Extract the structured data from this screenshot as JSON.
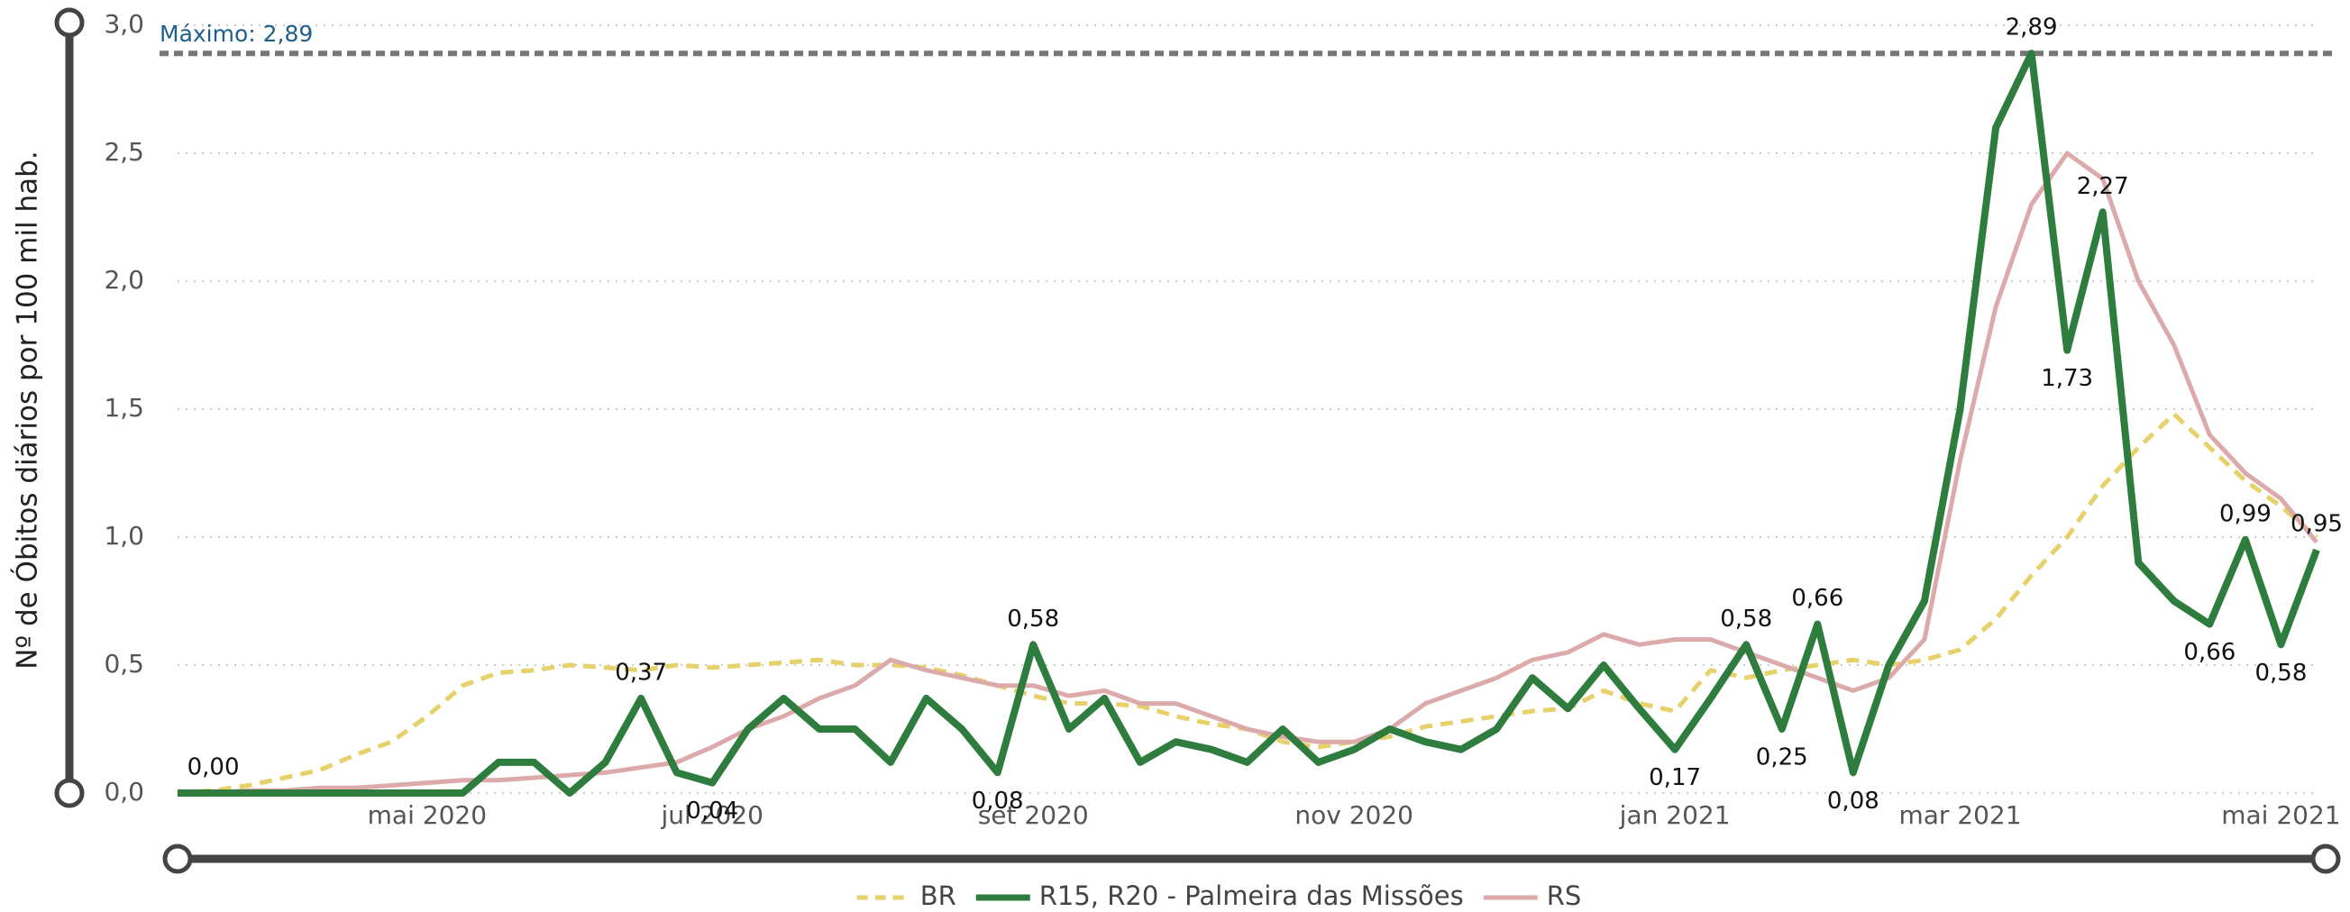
{
  "chart_data": {
    "type": "line",
    "y_label": "Nº de Óbitos diários por 100 mil hab.",
    "categories": [
      null,
      null,
      null,
      null,
      null,
      null,
      null,
      "mai 2020",
      null,
      null,
      null,
      null,
      null,
      null,
      null,
      "jul 2020",
      null,
      null,
      null,
      null,
      null,
      null,
      null,
      null,
      "set 2020",
      null,
      null,
      null,
      null,
      null,
      null,
      null,
      null,
      "nov 2020",
      null,
      null,
      null,
      null,
      null,
      null,
      null,
      null,
      "jan 2021",
      null,
      null,
      null,
      null,
      null,
      null,
      null,
      "mar 2021",
      null,
      null,
      null,
      null,
      null,
      null,
      null,
      null,
      "mai 2021",
      null
    ],
    "series": [
      {
        "name": "BR",
        "color": "#e6d16a",
        "dashed": true,
        "values": [
          0,
          0.01,
          0.03,
          0.06,
          0.09,
          0.15,
          0.2,
          0.3,
          0.42,
          0.47,
          0.48,
          0.5,
          0.49,
          0.48,
          0.5,
          0.49,
          0.5,
          0.51,
          0.52,
          0.5,
          0.5,
          0.49,
          0.46,
          0.42,
          0.38,
          0.35,
          0.35,
          0.34,
          0.3,
          0.27,
          0.25,
          0.2,
          0.18,
          0.2,
          0.22,
          0.26,
          0.28,
          0.3,
          0.32,
          0.33,
          0.4,
          0.35,
          0.32,
          0.48,
          0.45,
          0.48,
          0.5,
          0.52,
          0.5,
          0.52,
          0.56,
          0.68,
          0.85,
          1.0,
          1.2,
          1.35,
          1.48,
          1.35,
          1.22,
          1.12,
          1.0
        ]
      },
      {
        "name": "R15, R20 - Palmeira das Missões",
        "color": "#2e7d3e",
        "values": [
          0,
          0,
          0,
          0,
          0,
          0,
          0,
          0,
          0,
          0.12,
          0.12,
          0,
          0.12,
          0.37,
          0.08,
          0.04,
          0.25,
          0.37,
          0.25,
          0.25,
          0.12,
          0.37,
          0.25,
          0.08,
          0.58,
          0.25,
          0.37,
          0.12,
          0.2,
          0.17,
          0.12,
          0.25,
          0.12,
          0.17,
          0.25,
          0.2,
          0.17,
          0.25,
          0.45,
          0.33,
          0.5,
          0.33,
          0.17,
          0.37,
          0.58,
          0.25,
          0.66,
          0.08,
          0.5,
          0.75,
          1.5,
          2.6,
          2.89,
          1.73,
          2.27,
          0.9,
          0.75,
          0.66,
          0.99,
          0.58,
          0.95
        ],
        "value_labels": [
          null,
          "0,00",
          null,
          null,
          null,
          null,
          null,
          null,
          null,
          null,
          null,
          null,
          null,
          "0,37",
          null,
          "0,04",
          null,
          null,
          null,
          null,
          null,
          null,
          null,
          "0,08",
          "0,58",
          null,
          null,
          null,
          null,
          null,
          null,
          null,
          null,
          null,
          null,
          null,
          null,
          null,
          null,
          null,
          null,
          null,
          "0,17",
          null,
          "0,58",
          "0,25",
          "0,66",
          "0,08",
          null,
          null,
          null,
          null,
          "2,89",
          "1,73",
          "2,27",
          null,
          null,
          "0,66",
          "0,99",
          "0,58",
          "0,95"
        ]
      },
      {
        "name": "RS",
        "color": "#dcaaaa",
        "values": [
          0,
          0,
          0.01,
          0.01,
          0.02,
          0.02,
          0.03,
          0.04,
          0.05,
          0.05,
          0.06,
          0.07,
          0.08,
          0.1,
          0.12,
          0.18,
          0.25,
          0.3,
          0.37,
          0.42,
          0.52,
          0.48,
          0.45,
          0.42,
          0.42,
          0.38,
          0.4,
          0.35,
          0.35,
          0.3,
          0.25,
          0.22,
          0.2,
          0.2,
          0.25,
          0.35,
          0.4,
          0.45,
          0.52,
          0.55,
          0.62,
          0.58,
          0.6,
          0.6,
          0.55,
          0.5,
          0.45,
          0.4,
          0.45,
          0.6,
          1.3,
          1.9,
          2.3,
          2.5,
          2.4,
          2.0,
          1.75,
          1.4,
          1.25,
          1.15,
          0.98
        ]
      }
    ],
    "ylim": [
      0,
      3
    ],
    "yticks": [
      {
        "value": 0,
        "label": "0,0"
      },
      {
        "value": 0.5,
        "label": "0,5"
      },
      {
        "value": 1,
        "label": "1,0"
      },
      {
        "value": 1.5,
        "label": "1,5"
      },
      {
        "value": 2,
        "label": "2,0"
      },
      {
        "value": 2.5,
        "label": "2,5"
      },
      {
        "value": 3,
        "label": "3,0"
      }
    ],
    "grid": true,
    "reference_line": {
      "value": 2.89,
      "label": "Máximo: 2,89"
    },
    "legend": "bottom"
  }
}
